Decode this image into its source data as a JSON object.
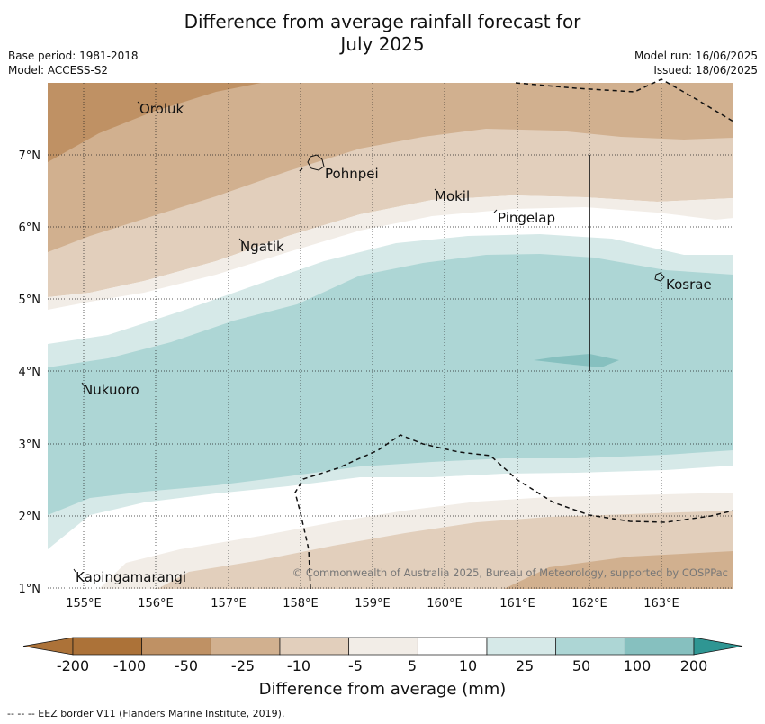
{
  "header": {
    "title_line1": "Difference from average rainfall forecast for",
    "title_line2": "July 2025",
    "base_period": "Base period: 1981-2018",
    "model": "Model: ACCESS-S2",
    "model_run": "Model run: 16/06/2025",
    "issued": "Issued: 18/06/2025"
  },
  "map": {
    "lat_labels": [
      "7°N",
      "6°N",
      "5°N",
      "4°N",
      "3°N",
      "2°N",
      "1°N"
    ],
    "lon_labels": [
      "155°E",
      "156°E",
      "157°E",
      "158°E",
      "159°E",
      "160°E",
      "161°E",
      "162°E",
      "163°E"
    ],
    "places": [
      "Oroluk",
      "Pohnpei",
      "Mokil",
      "Pingelap",
      "Ngatik",
      "Kosrae",
      "Nukuoro",
      "Kapingamarangi"
    ],
    "copyright": "© Commonwealth of Australia 2025, Bureau of Meteorology, supported by COSPPac",
    "grid": true
  },
  "colorbar": {
    "labels": [
      "-200",
      "-100",
      "-50",
      "-25",
      "-10",
      "-5",
      "5",
      "10",
      "25",
      "50",
      "100",
      "200"
    ],
    "colors": [
      "#ac7238",
      "#bf9164",
      "#d1b08f",
      "#e2cfbc",
      "#f2ede7",
      "#ffffff",
      "#d6e9e8",
      "#add6d5",
      "#86c0bf",
      "#5aa8a6",
      "#2f9693"
    ],
    "title": "Difference from average (mm)"
  },
  "footnote": "--  --  -- EEZ border V11 (Flanders Marine Institute, 2019)."
}
